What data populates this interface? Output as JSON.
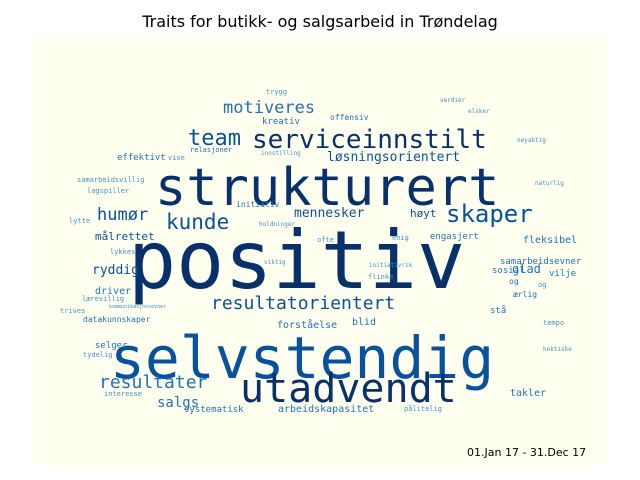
{
  "title": "Traits for butikk- og salgsarbeid in Trøndelag",
  "date_range": "01.Jan 17 - 31.Dec 17",
  "colors": {
    "cloud_background": "#fffff0",
    "dark_blue": "#08306b",
    "mid_blue": "#08519c",
    "blue": "#2171b5",
    "light_blue": "#4292c6",
    "pale_blue": "#6baed6"
  },
  "words": [
    "positiv",
    "selvstendig",
    "strukturert",
    "utadvendt",
    "serviceinnstilt",
    "team",
    "skaper",
    "kunde",
    "resultatorientert",
    "motiveres",
    "resultater",
    "humør",
    "løsningsorientert",
    "mennesker",
    "salgs",
    "målrettet",
    "ryddig",
    "glad",
    "fleksibel",
    "samarbeidsevner",
    "høyt",
    "forståelse",
    "driver",
    "blid",
    "takler",
    "arbeidskapasitet",
    "systematisk",
    "selger",
    "effektivt",
    "sosial",
    "vilje",
    "ærlig",
    "engasjert",
    "tydelig",
    "datakunnskaper",
    "kreativ",
    "offensiv",
    "relasjoner",
    "initiativ",
    "lagspiller",
    "samarbeidsvillig",
    "lykkes",
    "lytte",
    "lærevillig",
    "interesse",
    "pålitelig",
    "kommunikasjonsevner",
    "og",
    "tempo",
    "trives",
    "stå",
    "holdninger",
    "initiativrik",
    "flinke",
    "enig",
    "ofte",
    "trygg",
    "innstilling",
    "viktig",
    "elsker",
    "verdier",
    "nøyaktig",
    "hektiske",
    "vise",
    "og",
    "naturlig"
  ]
}
